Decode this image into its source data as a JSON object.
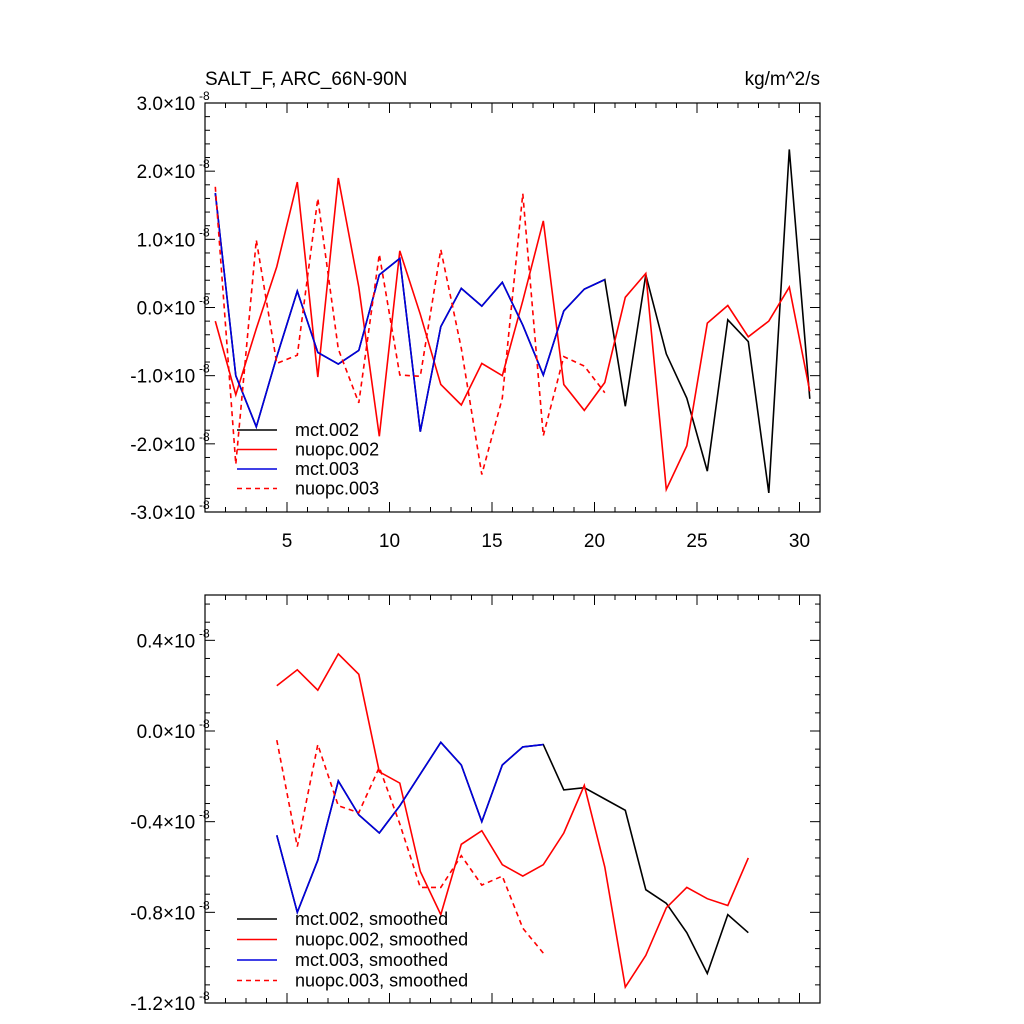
{
  "chart_data": [
    {
      "type": "line",
      "title": "SALT_F, ARC_66N-90N",
      "units": "kg/m^2/s",
      "xlim": [
        1,
        31
      ],
      "ylim": [
        -3.0,
        3.0
      ],
      "y_exponent": "-8",
      "x_ticks": [
        5,
        10,
        15,
        20,
        25,
        30
      ],
      "y_ticks": [
        -3.0,
        -2.0,
        -1.0,
        0.0,
        1.0,
        2.0,
        3.0
      ],
      "y_tick_labels": [
        "-3.0",
        "-2.0",
        "-1.0",
        "0.0",
        "1.0",
        "2.0",
        "3.0"
      ],
      "legend_position": "bottom-left",
      "series": [
        {
          "name": "mct.002",
          "color": "#000000",
          "dash": "solid",
          "x": [
            1.5,
            2.5,
            3.5,
            4.5,
            5.5,
            6.5,
            7.5,
            8.5,
            9.5,
            10.5,
            11.5,
            12.5,
            13.5,
            14.5,
            15.5,
            16.5,
            17.5,
            18.5,
            19.5,
            20.5,
            21.5,
            22.5,
            23.5,
            24.5,
            25.5,
            26.5,
            27.5,
            28.5,
            29.5,
            30.5
          ],
          "y": [
            1.68,
            -1.0,
            -1.75,
            -0.72,
            0.24,
            -0.66,
            -0.83,
            -0.63,
            0.48,
            0.72,
            -1.82,
            -0.28,
            0.28,
            0.02,
            0.37,
            -0.26,
            -0.99,
            -0.05,
            0.27,
            0.41,
            -1.45,
            0.48,
            -0.68,
            -1.33,
            -2.4,
            -0.18,
            -0.5,
            -2.72,
            2.32,
            -1.34
          ]
        },
        {
          "name": "nuopc.002",
          "color": "#ff0000",
          "dash": "solid",
          "x": [
            1.5,
            2.5,
            3.5,
            4.5,
            5.5,
            6.5,
            7.5,
            8.5,
            9.5,
            10.5,
            11.5,
            12.5,
            13.5,
            14.5,
            15.5,
            16.5,
            17.5,
            18.5,
            19.5,
            20.5,
            21.5,
            22.5,
            23.5,
            24.5,
            25.5,
            26.5,
            27.5,
            28.5,
            29.5,
            30.5
          ],
          "y": [
            -0.2,
            -1.28,
            -0.31,
            0.6,
            1.84,
            -1.02,
            1.9,
            0.3,
            -1.89,
            0.83,
            -0.1,
            -1.13,
            -1.43,
            -0.82,
            -1.0,
            0.1,
            1.27,
            -1.13,
            -1.51,
            -1.1,
            0.15,
            0.5,
            -2.67,
            -2.03,
            -0.23,
            0.03,
            -0.43,
            -0.2,
            0.3,
            -1.23
          ]
        },
        {
          "name": "mct.003",
          "color": "#0000dd",
          "dash": "solid",
          "x": [
            1.5,
            2.5,
            3.5,
            4.5,
            5.5,
            6.5,
            7.5,
            8.5,
            9.5,
            10.5,
            11.5,
            12.5,
            13.5,
            14.5,
            15.5,
            16.5,
            17.5,
            18.5,
            19.5,
            20.5
          ],
          "y": [
            1.68,
            -1.0,
            -1.75,
            -0.72,
            0.24,
            -0.66,
            -0.83,
            -0.63,
            0.48,
            0.72,
            -1.82,
            -0.28,
            0.28,
            0.02,
            0.37,
            -0.26,
            -0.99,
            -0.05,
            0.27,
            0.41
          ]
        },
        {
          "name": "nuopc.003",
          "color": "#ff0000",
          "dash": "dashed",
          "x": [
            1.5,
            2.5,
            3.5,
            4.5,
            5.5,
            6.5,
            7.5,
            8.5,
            9.5,
            10.5,
            11.5,
            12.5,
            13.5,
            14.5,
            15.5,
            16.5,
            17.5,
            18.5,
            19.5,
            20.5
          ],
          "y": [
            1.77,
            -2.3,
            0.99,
            -0.82,
            -0.7,
            1.6,
            -0.61,
            -1.4,
            0.78,
            -0.99,
            -1.01,
            0.85,
            -0.6,
            -2.45,
            -1.33,
            1.67,
            -1.88,
            -0.72,
            -0.86,
            -1.25
          ]
        }
      ]
    },
    {
      "type": "line",
      "xlim": [
        1,
        31
      ],
      "ylim": [
        -1.2,
        0.6
      ],
      "y_exponent": "-8",
      "x_ticks": [
        5,
        10,
        15,
        20,
        25,
        30
      ],
      "y_ticks": [
        -1.2,
        -0.8,
        -0.4,
        0.0,
        0.4
      ],
      "y_tick_labels": [
        "-1.2",
        "-0.8",
        "-0.4",
        "0.0",
        "0.4"
      ],
      "legend_position": "bottom-left",
      "series": [
        {
          "name": "mct.002, smoothed",
          "color": "#000000",
          "dash": "solid",
          "x": [
            4.5,
            5.5,
            6.5,
            7.5,
            8.5,
            9.5,
            10.5,
            11.5,
            12.5,
            13.5,
            14.5,
            15.5,
            16.5,
            17.5,
            18.5,
            19.5,
            20.5,
            21.5,
            22.5,
            23.5,
            24.5,
            25.5,
            26.5,
            27.5
          ],
          "y": [
            -0.46,
            -0.8,
            -0.57,
            -0.22,
            -0.37,
            -0.45,
            -0.33,
            -0.19,
            -0.05,
            -0.15,
            -0.4,
            -0.15,
            -0.07,
            -0.06,
            -0.26,
            -0.25,
            -0.3,
            -0.35,
            -0.7,
            -0.76,
            -0.89,
            -1.07,
            -0.81,
            -0.89
          ]
        },
        {
          "name": "nuopc.002, smoothed",
          "color": "#ff0000",
          "dash": "solid",
          "x": [
            4.5,
            5.5,
            6.5,
            7.5,
            8.5,
            9.5,
            10.5,
            11.5,
            12.5,
            13.5,
            14.5,
            15.5,
            16.5,
            17.5,
            18.5,
            19.5,
            20.5,
            21.5,
            22.5,
            23.5,
            24.5,
            25.5,
            26.5,
            27.5
          ],
          "y": [
            0.2,
            0.27,
            0.18,
            0.34,
            0.25,
            -0.18,
            -0.23,
            -0.62,
            -0.81,
            -0.5,
            -0.44,
            -0.59,
            -0.64,
            -0.59,
            -0.45,
            -0.24,
            -0.6,
            -1.13,
            -0.99,
            -0.78,
            -0.69,
            -0.74,
            -0.77,
            -0.56
          ]
        },
        {
          "name": "mct.003, smoothed",
          "color": "#0000dd",
          "dash": "solid",
          "x": [
            4.5,
            5.5,
            6.5,
            7.5,
            8.5,
            9.5,
            10.5,
            11.5,
            12.5,
            13.5,
            14.5,
            15.5,
            16.5,
            17.5
          ],
          "y": [
            -0.46,
            -0.8,
            -0.57,
            -0.22,
            -0.37,
            -0.45,
            -0.33,
            -0.19,
            -0.05,
            -0.15,
            -0.4,
            -0.15,
            -0.07,
            -0.06
          ]
        },
        {
          "name": "nuopc.003, smoothed",
          "color": "#ff0000",
          "dash": "dashed",
          "x": [
            4.5,
            5.5,
            6.5,
            7.5,
            8.5,
            9.5,
            10.5,
            11.5,
            12.5,
            13.5,
            14.5,
            15.5,
            16.5,
            17.5
          ],
          "y": [
            -0.04,
            -0.51,
            -0.06,
            -0.33,
            -0.36,
            -0.16,
            -0.41,
            -0.69,
            -0.69,
            -0.55,
            -0.68,
            -0.64,
            -0.87,
            -0.98
          ]
        }
      ]
    }
  ]
}
